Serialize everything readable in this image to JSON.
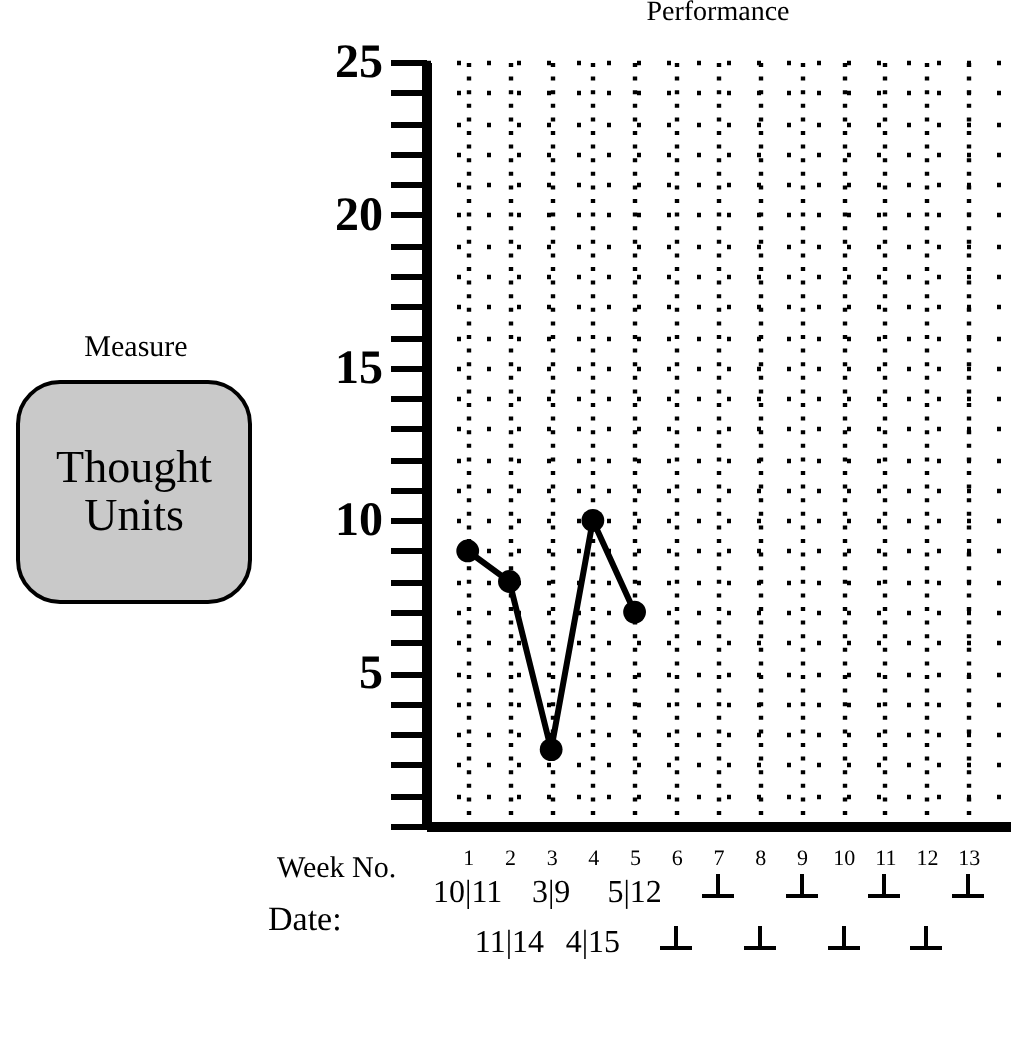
{
  "chart_data": {
    "type": "line",
    "title": "Performance",
    "xlabel": "Week No.",
    "ylabel": "Thought Units",
    "annotations": [
      "Measure",
      "Date:",
      "10|11",
      "11|14",
      "3|9",
      "4|15",
      "5|12"
    ],
    "x": [
      1,
      2,
      3,
      4,
      5
    ],
    "series": [
      {
        "color": "#000000",
        "values": [
          9,
          8,
          2.5,
          10,
          7
        ]
      }
    ],
    "xlim": [
      0,
      14
    ],
    "xticks": [
      1,
      2,
      3,
      4,
      5,
      6,
      7,
      8,
      9,
      10,
      11,
      12,
      13
    ],
    "ylim": [
      0,
      25
    ],
    "yticks": [
      {
        "value": 0,
        "label": null
      },
      {
        "value": 1,
        "label": null
      },
      {
        "value": 2,
        "label": null
      },
      {
        "value": 3,
        "label": null
      },
      {
        "value": 4,
        "label": null
      },
      5,
      {
        "value": 6,
        "label": null
      },
      {
        "value": 7,
        "label": null
      },
      {
        "value": 8,
        "label": null
      },
      {
        "value": 9,
        "label": null
      },
      10,
      {
        "value": 11,
        "label": null
      },
      {
        "value": 12,
        "label": null
      },
      {
        "value": 13,
        "label": null
      },
      {
        "value": 14,
        "label": null
      },
      15,
      {
        "value": 16,
        "label": null
      },
      {
        "value": 17,
        "label": null
      },
      {
        "value": 18,
        "label": null
      },
      {
        "value": 19,
        "label": null
      },
      20,
      {
        "value": 21,
        "label": null
      },
      {
        "value": 22,
        "label": null
      },
      {
        "value": 23,
        "label": null
      },
      {
        "value": 24,
        "label": null
      },
      25
    ],
    "grid": true,
    "marker": "circle",
    "line_style": "solid",
    "legend": false
  }
}
